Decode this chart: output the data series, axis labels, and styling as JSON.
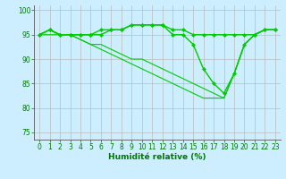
{
  "xlabel": "Humidité relative (%)",
  "bg_color": "#cceeff",
  "grid_color": "#bbbbbb",
  "line_color": "#00cc00",
  "ylim": [
    73.5,
    101
  ],
  "xlim": [
    -0.5,
    23.5
  ],
  "yticks": [
    75,
    80,
    85,
    90,
    95,
    100
  ],
  "xticks": [
    0,
    1,
    2,
    3,
    4,
    5,
    6,
    7,
    8,
    9,
    10,
    11,
    12,
    13,
    14,
    15,
    16,
    17,
    18,
    19,
    20,
    21,
    22,
    23
  ],
  "series": [
    {
      "x": [
        0,
        1,
        2,
        3,
        4,
        5,
        6,
        7,
        8,
        9,
        10,
        11,
        12,
        13,
        14,
        15,
        16,
        17,
        18,
        19,
        20,
        21,
        22,
        23
      ],
      "y": [
        95,
        96,
        95,
        95,
        95,
        95,
        95,
        96,
        96,
        97,
        97,
        97,
        97,
        96,
        96,
        95,
        95,
        95,
        95,
        95,
        95,
        95,
        96,
        96
      ],
      "marker": true,
      "linewidth": 1.0
    },
    {
      "x": [
        0,
        1,
        2,
        3,
        4,
        5,
        6,
        7,
        8,
        9,
        10,
        11,
        12,
        13,
        14,
        15,
        16,
        17,
        18,
        19,
        20,
        21,
        22,
        23
      ],
      "y": [
        95,
        96,
        95,
        95,
        95,
        95,
        96,
        96,
        96,
        97,
        97,
        97,
        97,
        95,
        95,
        93,
        88,
        85,
        83,
        87,
        93,
        95,
        96,
        96
      ],
      "marker": true,
      "linewidth": 1.0
    },
    {
      "x": [
        0,
        1,
        2,
        3,
        4,
        5,
        6,
        7,
        8,
        9,
        10,
        11,
        12,
        13,
        14,
        15,
        16,
        17,
        18,
        19,
        20,
        21,
        22,
        23
      ],
      "y": [
        95,
        96,
        95,
        95,
        94,
        93,
        93,
        92,
        91,
        90,
        90,
        89,
        88,
        87,
        86,
        85,
        84,
        83,
        82,
        87,
        93,
        95,
        96,
        96
      ],
      "marker": false,
      "linewidth": 0.8
    },
    {
      "x": [
        0,
        1,
        2,
        3,
        4,
        5,
        6,
        7,
        8,
        9,
        10,
        11,
        12,
        13,
        14,
        15,
        16,
        17,
        18,
        19,
        20,
        21,
        22,
        23
      ],
      "y": [
        95,
        95,
        95,
        95,
        94,
        93,
        92,
        91,
        90,
        89,
        88,
        87,
        86,
        85,
        84,
        83,
        82,
        82,
        82,
        87,
        93,
        95,
        96,
        96
      ],
      "marker": false,
      "linewidth": 0.8
    }
  ],
  "tick_labelsize": 5.5,
  "xlabel_fontsize": 6.5,
  "xlabel_color": "#007700",
  "tick_color": "#007700"
}
